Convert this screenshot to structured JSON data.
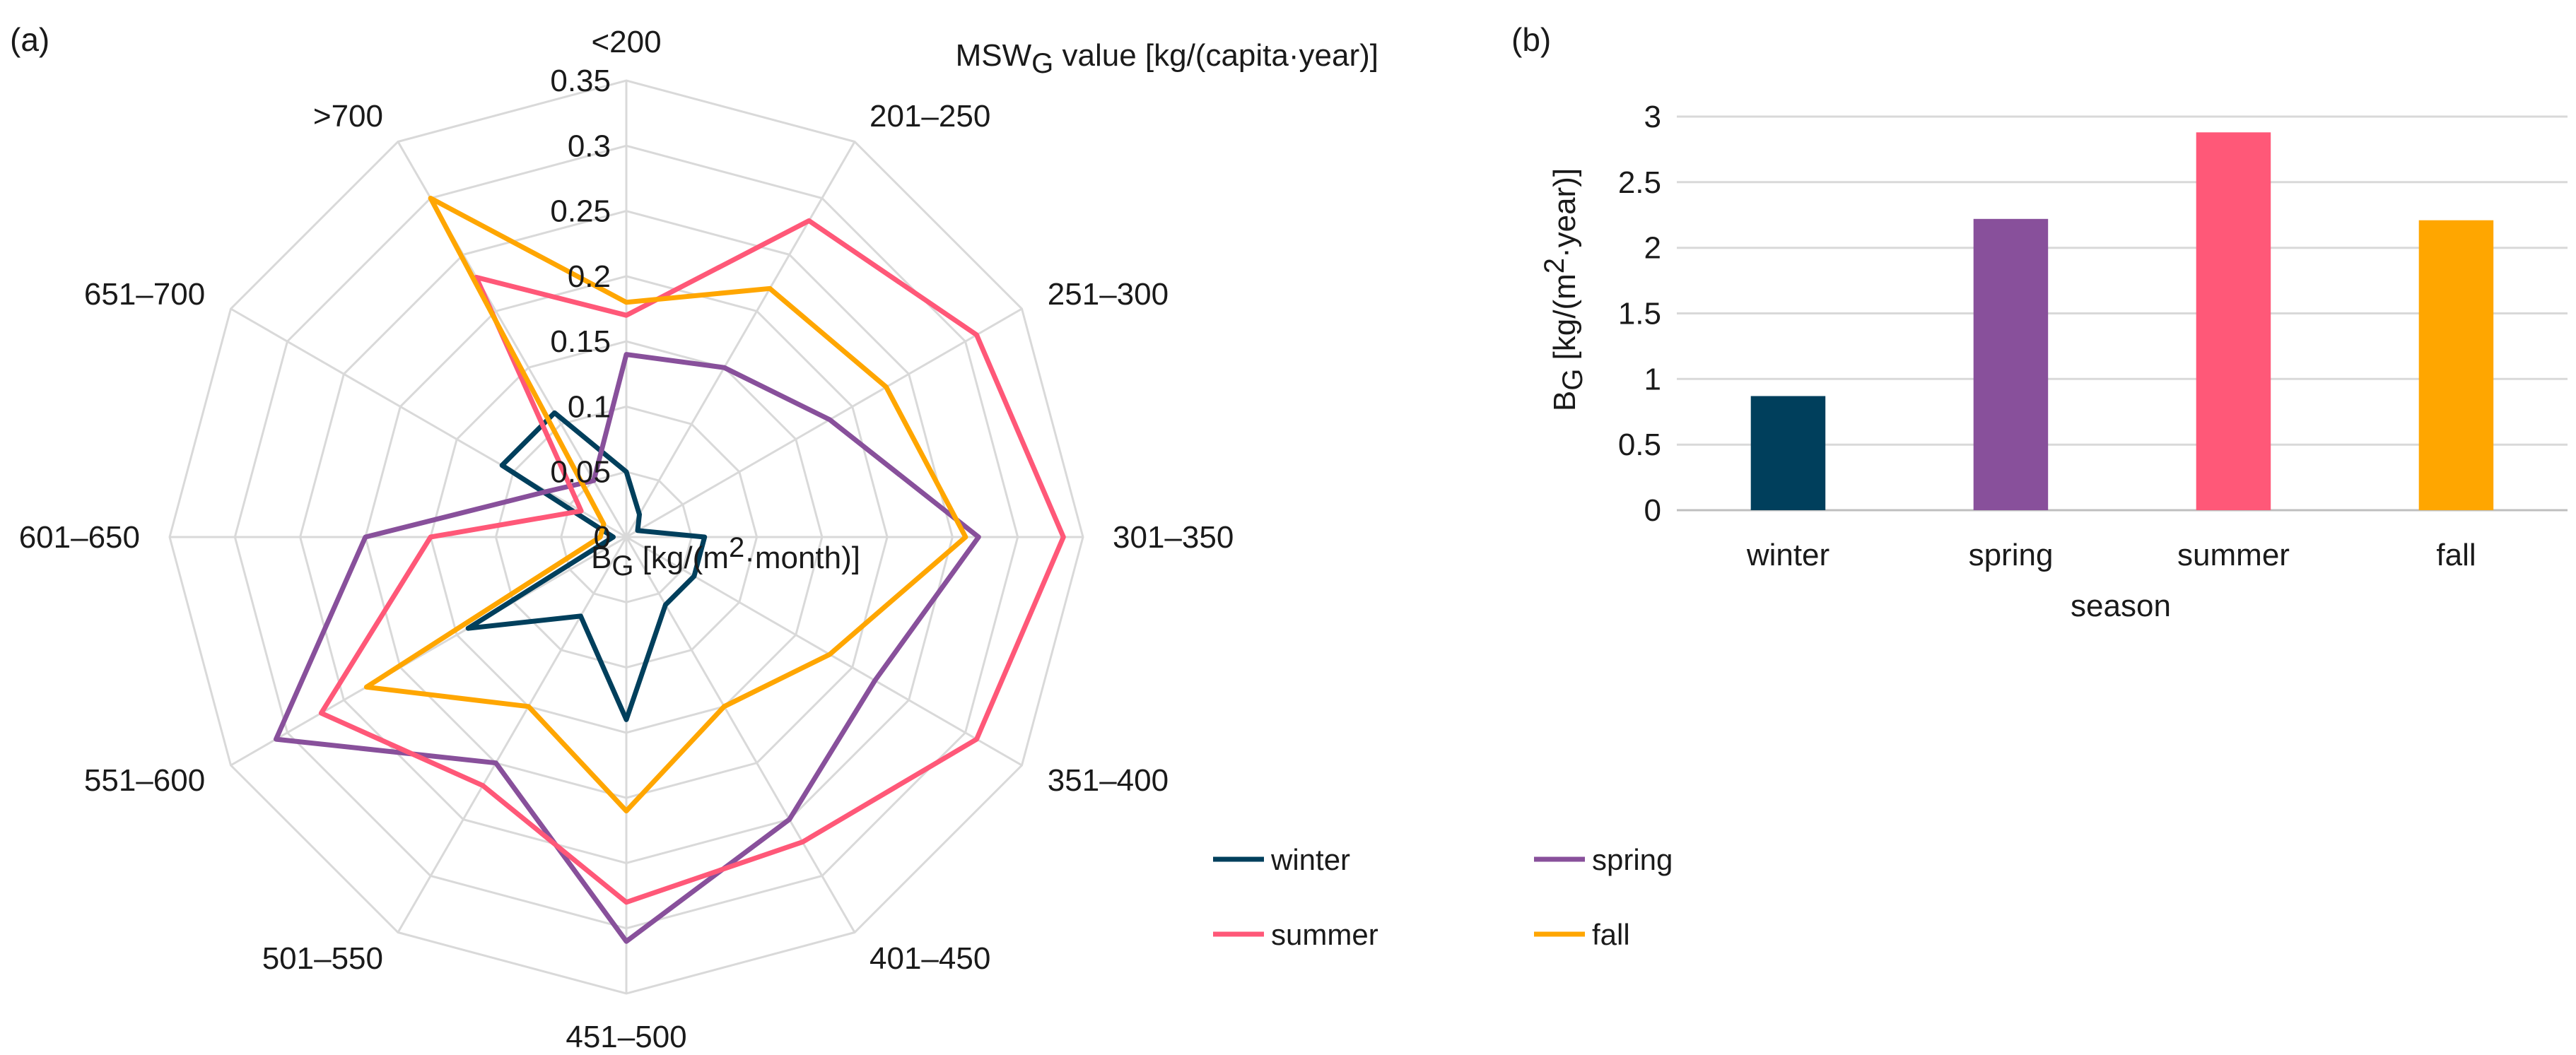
{
  "chart_data": [
    {
      "panel": "(a)",
      "type": "radar",
      "title": "MSW_G value [kg/(capita·year)]",
      "title_parts": {
        "main": "MSW",
        "sub": "G",
        "rest": " value [kg/(capita·year)]"
      },
      "radial_label": "B_G [kg/(m²·month)]",
      "radial_label_parts": {
        "main": "B",
        "sub": "G",
        "mid": " [kg/(m",
        "sup": "2",
        "rest": "·month)]"
      },
      "categories": [
        "<200",
        "201–250",
        "251–300",
        "301–350",
        "351–400",
        "401–450",
        "451–500",
        "501–550",
        "551–600",
        "601–650",
        "651–700",
        ">700"
      ],
      "radial_ticks": [
        "0",
        "0.05",
        "0.1",
        "0.15",
        "0.2",
        "0.25",
        "0.3",
        "0.35"
      ],
      "rlim": [
        0,
        0.35
      ],
      "series": [
        {
          "name": "winter",
          "color": "#003f5c",
          "values": [
            0.05,
            0.02,
            0.01,
            0.06,
            0.06,
            0.06,
            0.14,
            0.07,
            0.14,
            0.01,
            0.11,
            0.11
          ]
        },
        {
          "name": "spring",
          "color": "#88509b",
          "values": [
            0.14,
            0.15,
            0.18,
            0.27,
            0.22,
            0.25,
            0.31,
            0.2,
            0.31,
            0.2,
            0.07,
            0.05
          ]
        },
        {
          "name": "summer",
          "color": "#ff5878",
          "values": [
            0.17,
            0.28,
            0.31,
            0.335,
            0.31,
            0.27,
            0.28,
            0.22,
            0.27,
            0.15,
            0.04,
            0.23
          ]
        },
        {
          "name": "fall",
          "color": "#ffa600",
          "values": [
            0.18,
            0.22,
            0.23,
            0.26,
            0.18,
            0.15,
            0.21,
            0.15,
            0.23,
            0.02,
            0.02,
            0.3
          ]
        }
      ],
      "legend": [
        "winter",
        "spring",
        "summer",
        "fall"
      ],
      "legend_position": "bottom-right of panel"
    },
    {
      "panel": "(b)",
      "type": "bar",
      "categories": [
        "winter",
        "spring",
        "summer",
        "fall"
      ],
      "values": [
        0.87,
        2.22,
        2.88,
        2.21
      ],
      "colors": [
        "#003f5c",
        "#88509b",
        "#ff5878",
        "#ffa600"
      ],
      "xlabel": "season",
      "ylabel": "B_G [kg/(m²·year)]",
      "ylabel_parts": {
        "main": "B",
        "sub": "G",
        "mid": " [kg/(m",
        "sup": "2",
        "rest": "·year)]"
      },
      "ylim": [
        0,
        3
      ],
      "yticks": [
        "0",
        "0.5",
        "1",
        "1.5",
        "2",
        "2.5",
        "3"
      ],
      "grid": true
    }
  ]
}
